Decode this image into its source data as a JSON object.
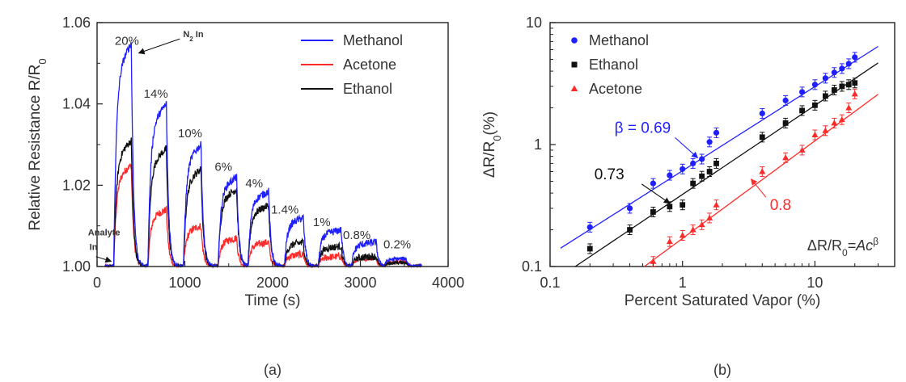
{
  "chart_data": [
    {
      "panel_label": "(a)",
      "type": "line",
      "xlabel": "Time (s)",
      "ylabel_main": "Relative Resistance R/R",
      "ylabel_sub": "0",
      "xlim": [
        0,
        4000
      ],
      "ylim": [
        1.0,
        1.06
      ],
      "x_ticks": [
        0,
        1000,
        2000,
        3000,
        4000
      ],
      "x_tick_labels": [
        "0",
        "1000",
        "2000",
        "3000",
        "4000"
      ],
      "y_ticks": [
        1.0,
        1.02,
        1.04,
        1.06
      ],
      "y_tick_labels": [
        "1.00",
        "1.02",
        "1.04",
        "1.06"
      ],
      "legend_position": "top-right",
      "pulse_windows": [
        {
          "on": 190,
          "off": 390
        },
        {
          "on": 580,
          "off": 790
        },
        {
          "on": 985,
          "off": 1185
        },
        {
          "on": 1380,
          "off": 1590
        },
        {
          "on": 1720,
          "off": 1955
        },
        {
          "on": 2135,
          "off": 2350
        },
        {
          "on": 2520,
          "off": 2780
        },
        {
          "on": 2900,
          "off": 3180
        },
        {
          "on": 3270,
          "off": 3520
        }
      ],
      "series": [
        {
          "name": "Methanol",
          "color": "#1f1fff",
          "peaks": [
            1.055,
            1.04,
            1.03,
            1.022,
            1.0185,
            1.012,
            1.009,
            1.006,
            1.002
          ]
        },
        {
          "name": "Acetone",
          "color": "#ff2a2a",
          "peaks": [
            1.025,
            1.014,
            1.01,
            1.007,
            1.006,
            1.003,
            1.0025,
            1.002,
            1.0012
          ]
        },
        {
          "name": "Ethanol",
          "color": "#111111",
          "peaks": [
            1.031,
            1.029,
            1.024,
            1.019,
            1.015,
            1.006,
            1.005,
            1.0025,
            1.001
          ]
        }
      ],
      "peak_labels": [
        {
          "text": "20%",
          "x": 340,
          "y": 1.0545
        },
        {
          "text": "14%",
          "x": 670,
          "y": 1.0415
        },
        {
          "text": "10%",
          "x": 1060,
          "y": 1.0318
        },
        {
          "text": "6%",
          "x": 1440,
          "y": 1.0235
        },
        {
          "text": "4%",
          "x": 1790,
          "y": 1.0195
        },
        {
          "text": "1.4%",
          "x": 2140,
          "y": 1.013
        },
        {
          "text": "1%",
          "x": 2560,
          "y": 1.0099
        },
        {
          "text": "0.8%",
          "x": 2960,
          "y": 1.0068
        },
        {
          "text": "0.2%",
          "x": 3420,
          "y": 1.0045
        }
      ],
      "annotations": [
        {
          "text": "N",
          "sub": "2",
          "text_after": " In",
          "text_x": 980,
          "text_y": 1.0564,
          "arrow_to_x": 420,
          "arrow_to_y": 1.0535
        },
        {
          "text": "Analyte",
          "text2": "In",
          "text_x": 80,
          "text_y": 1.0076,
          "arrow_to_x": 160,
          "arrow_to_y": 1.0005
        }
      ]
    },
    {
      "panel_label": "(b)",
      "type": "scatter",
      "x_scale": "log",
      "y_scale": "log",
      "xlabel": "Percent Saturated Vapor (%)",
      "ylabel_main": "ΔR/R",
      "ylabel_sub": "0",
      "ylabel_tail": "(%)",
      "xlim": [
        0.1,
        40
      ],
      "ylim": [
        0.1,
        10
      ],
      "x_ticks": [
        0.1,
        1,
        10
      ],
      "x_tick_labels": [
        "0.1",
        "1",
        "10"
      ],
      "y_ticks": [
        0.1,
        1,
        10
      ],
      "y_tick_labels": [
        "0.1",
        "1",
        "10"
      ],
      "legend_position": "top-left",
      "series": [
        {
          "name": "Methanol",
          "marker": "circle",
          "color": "#1f1fff",
          "x": [
            0.2,
            0.4,
            0.6,
            0.8,
            1.0,
            1.2,
            1.4,
            1.6,
            1.8,
            4.0,
            6.0,
            8.0,
            10.0,
            12.0,
            14.0,
            16.0,
            18.0,
            20.0
          ],
          "y": [
            0.21,
            0.3,
            0.48,
            0.56,
            0.63,
            0.7,
            0.76,
            1.05,
            1.25,
            1.8,
            2.3,
            2.7,
            3.1,
            3.5,
            3.9,
            4.2,
            4.6,
            5.2
          ],
          "fit": {
            "A": 0.61,
            "beta": 0.69
          }
        },
        {
          "name": "Ethanol",
          "marker": "square",
          "color": "#111111",
          "x": [
            0.2,
            0.4,
            0.6,
            0.8,
            1.0,
            1.2,
            1.4,
            1.6,
            1.8,
            4.0,
            6.0,
            8.0,
            10.0,
            12.0,
            14.0,
            16.0,
            18.0,
            20.0
          ],
          "y": [
            0.14,
            0.2,
            0.28,
            0.31,
            0.32,
            0.48,
            0.55,
            0.6,
            0.7,
            1.15,
            1.5,
            1.9,
            2.1,
            2.5,
            2.8,
            3.0,
            3.1,
            3.2
          ],
          "fit": {
            "A": 0.39,
            "beta": 0.73
          }
        },
        {
          "name": "Acetone",
          "marker": "triangle",
          "color": "#ff2a2a",
          "x": [
            0.6,
            0.8,
            1.0,
            1.2,
            1.4,
            1.6,
            1.8,
            4.0,
            6.0,
            8.0,
            10.0,
            12.0,
            14.0,
            16.0,
            18.0,
            20.0
          ],
          "y": [
            0.11,
            0.16,
            0.18,
            0.2,
            0.22,
            0.25,
            0.32,
            0.6,
            0.78,
            0.9,
            1.2,
            1.3,
            1.5,
            1.6,
            2.0,
            2.6
          ],
          "fit": {
            "A": 0.17,
            "beta": 0.8
          }
        }
      ],
      "slope_annotations": [
        {
          "text": "β = 0.69",
          "color": "#1f1fff",
          "text_x": 0.5,
          "text_y": 1.25,
          "arrow_to_x": 1.3,
          "arrow_to_y": 0.78
        },
        {
          "text": "0.73",
          "color": "#111111",
          "text_x": 0.28,
          "text_y": 0.52,
          "arrow_to_x": 0.8,
          "arrow_to_y": 0.33
        },
        {
          "text": "0.8",
          "color": "#ff2a2a",
          "text_x": 5.5,
          "text_y": 0.29,
          "arrow_to_x": 3.3,
          "arrow_to_y": 0.52
        }
      ],
      "equation": {
        "part1": "ΔR/R",
        "sub": "0",
        "part2": "=Ac",
        "sup": "β"
      }
    }
  ]
}
